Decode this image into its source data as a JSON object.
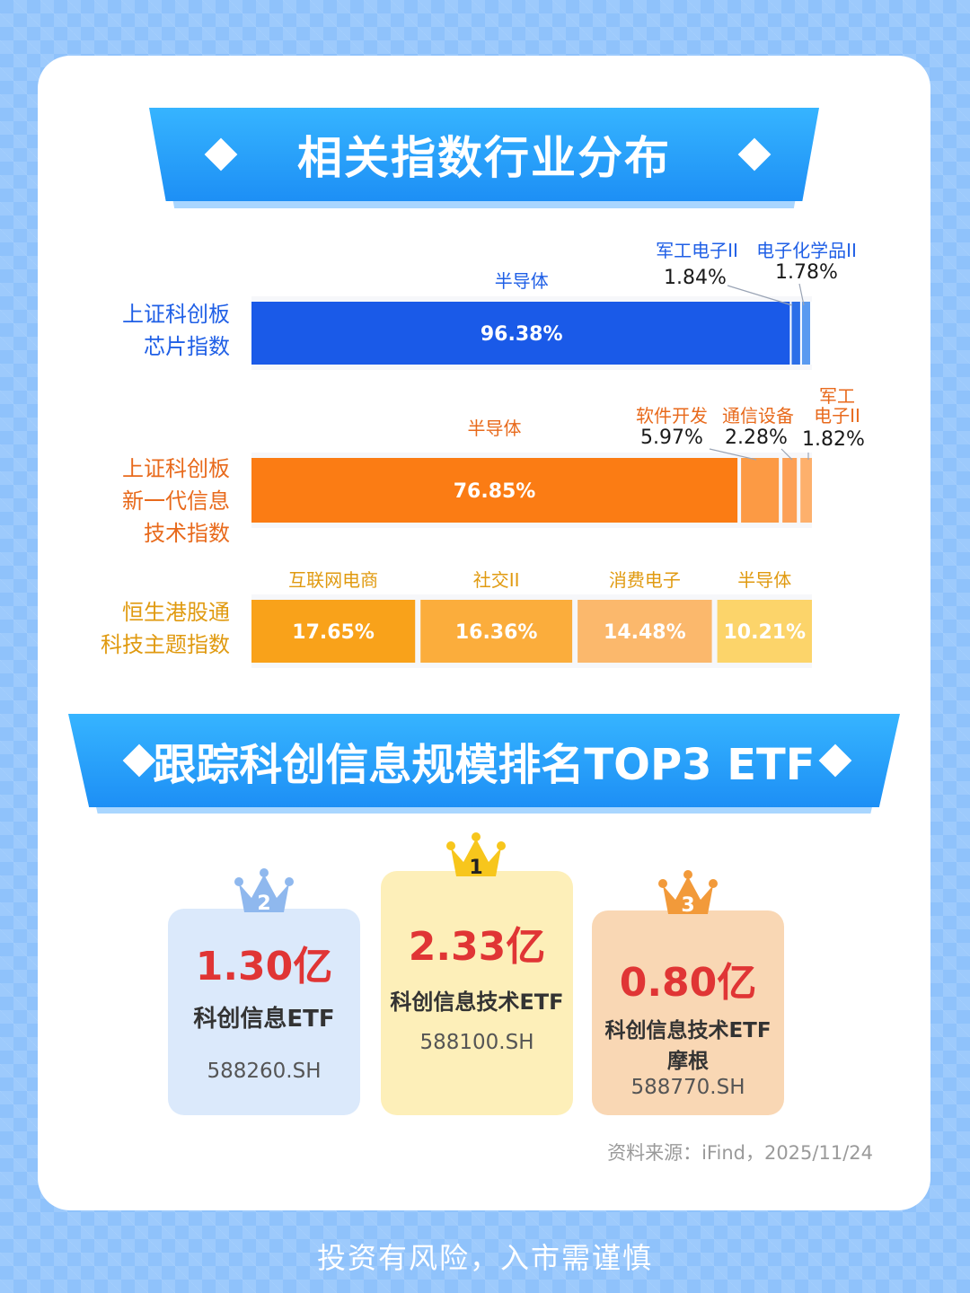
{
  "title": "相关指数行业分布",
  "chart_data": {
    "type": "bar",
    "stacked": true,
    "orientation": "horizontal",
    "xlim": [
      0,
      100
    ],
    "rows": [
      {
        "index_lines": [
          "上证科创板",
          "芯片指数"
        ],
        "color": "#1f5fe6",
        "segments": [
          {
            "name": "半导体",
            "value": 96.38,
            "color": "#1a5ae8",
            "label": "96.38%"
          },
          {
            "name": "军工电子II",
            "value": 1.84,
            "color": "#2c6fe8",
            "label": "1.84%"
          },
          {
            "name": "电子化学品II",
            "value": 1.78,
            "color": "#5a9af0",
            "label": "1.78%"
          }
        ]
      },
      {
        "index_lines": [
          "上证科创板",
          "新一代信息",
          "技术指数"
        ],
        "color": "#e86a1c",
        "segments": [
          {
            "name": "半导体",
            "value": 76.85,
            "color": "#fb7c14",
            "label": "76.85%"
          },
          {
            "name": "软件开发",
            "value": 5.97,
            "color": "#fc9a44",
            "label": "5.97%"
          },
          {
            "name": "通信设备",
            "value": 2.28,
            "color": "#fca056",
            "label": "2.28%"
          },
          {
            "name": "军工电子II",
            "name_lines": [
              "军工",
              "电子II"
            ],
            "value": 1.82,
            "color": "#fdb06c",
            "label": "1.82%"
          }
        ]
      },
      {
        "index_lines": [
          "恒生港股通",
          "科技主题指数"
        ],
        "color": "#e09a10",
        "segments": [
          {
            "name": "互联网电商",
            "value": 17.65,
            "color": "#f9a21a",
            "label": "17.65%"
          },
          {
            "name": "社交II",
            "value": 16.36,
            "color": "#fbad3c",
            "label": "16.36%"
          },
          {
            "name": "消费电子",
            "value": 14.48,
            "color": "#fbb86c",
            "label": "14.48%"
          },
          {
            "name": "半导体",
            "value": 10.21,
            "color": "#fcd46a",
            "label": "10.21%"
          }
        ]
      }
    ]
  },
  "ranking": {
    "title": "跟踪科创信息规模排名TOP3 ETF",
    "items": [
      {
        "rank": "2",
        "amount": "1.30亿",
        "name": "科创信息ETF",
        "code": "588260.SH",
        "bg": "#dbe9fb",
        "crown": "#8fb8ee"
      },
      {
        "rank": "1",
        "amount": "2.33亿",
        "name": "科创信息技术ETF",
        "code": "588100.SH",
        "bg": "#fdefb9",
        "crown": "#f7c61c"
      },
      {
        "rank": "3",
        "amount": "0.80亿",
        "name": "科创信息技术ETF",
        "name2": "摩根",
        "code": "588770.SH",
        "bg": "#f9d7b4",
        "crown": "#f29a3a"
      }
    ]
  },
  "source": "资料来源：iFind，2025/11/24",
  "footer": "投资有风险，入市需谨慎"
}
